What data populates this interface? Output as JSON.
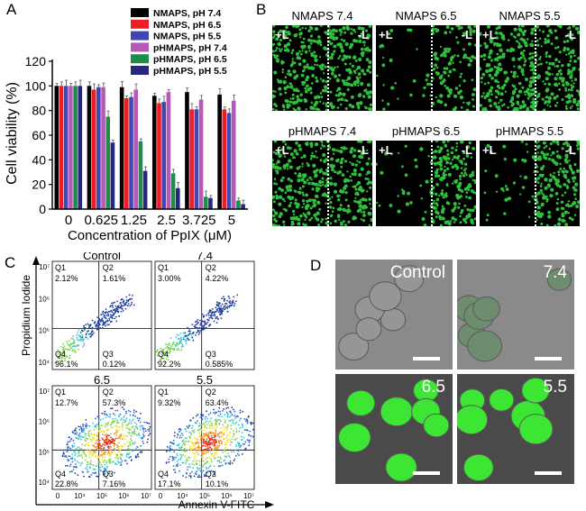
{
  "panel_labels": {
    "a": "A",
    "b": "B",
    "c": "C",
    "d": "D"
  },
  "chart_data": [
    {
      "type": "bar",
      "panel": "A",
      "ylabel": "Cell viability (%)",
      "xlabel": "Concentration of PpIX (μM)",
      "ylim": [
        0,
        120
      ],
      "yticks": [
        "0",
        "20",
        "40",
        "60",
        "80",
        "100",
        "120"
      ],
      "categories": [
        "0",
        "0.625",
        "1.25",
        "2.5",
        "3.725",
        "5"
      ],
      "legend_position": "top-right",
      "series": [
        {
          "name": "NMAPS, pH 7.4",
          "color": "#000000",
          "values": [
            100,
            100,
            99,
            92,
            95,
            93
          ]
        },
        {
          "name": "NMAPS, pH 6.5",
          "color": "#ee1c25",
          "values": [
            100,
            97,
            90,
            86,
            81,
            81
          ]
        },
        {
          "name": "NMAPS, pH 5.5",
          "color": "#3f47b7",
          "values": [
            100,
            99,
            91,
            87,
            81,
            78
          ]
        },
        {
          "name": "pHMAPS, pH 7.4",
          "color": "#b659b6",
          "values": [
            100,
            99,
            97,
            95,
            89,
            88
          ]
        },
        {
          "name": "pHMAPS, pH 6.5",
          "color": "#1e8c4a",
          "values": [
            100,
            75,
            55,
            29,
            10,
            7
          ]
        },
        {
          "name": "pHMAPS, pH 5.5",
          "color": "#25287c",
          "values": [
            100,
            54,
            31,
            17,
            9,
            4
          ]
        }
      ]
    },
    {
      "type": "scatter",
      "panel": "C",
      "xlabel": "Annexin V-FITC",
      "ylabel": "Propidium Iodide",
      "x_ticks": [
        "0",
        "10⁴",
        "10⁵",
        "10⁶",
        "10⁷"
      ],
      "y_ticks": [
        "10⁷",
        "10⁶",
        "10⁵",
        "10⁴"
      ],
      "plots": [
        {
          "title": "Control",
          "q1_label": "Q1",
          "q1": "2.12%",
          "q2_label": "Q2",
          "q2": "1.61%",
          "q3_label": "Q3",
          "q3": "0.12%",
          "q4_label": "Q4",
          "q4": "96.1%"
        },
        {
          "title": "7.4",
          "q1_label": "Q1",
          "q1": "3.00%",
          "q2_label": "Q2",
          "q2": "4.22%",
          "q3_label": "Q3",
          "q3": "0.585%",
          "q4_label": "Q4",
          "q4": "92.2%"
        },
        {
          "title": "6.5",
          "q1_label": "Q1",
          "q1": "12.7%",
          "q2_label": "Q2",
          "q2": "57.3%",
          "q3_label": "Q3",
          "q3": "7.16%",
          "q4_label": "Q4",
          "q4": "22.8%"
        },
        {
          "title": "5.5",
          "q1_label": "Q1",
          "q1": "9.32%",
          "q2_label": "Q2",
          "q2": "63.4%",
          "q3_label": "Q3",
          "q3": "10.1%",
          "q4_label": "Q4",
          "q4": "17.1%"
        }
      ]
    }
  ],
  "panel_b": {
    "cells": [
      {
        "title": "NMAPS 7.4",
        "left_tag": "+L",
        "right_tag": "-L"
      },
      {
        "title": "NMAPS 6.5",
        "left_tag": "+L",
        "right_tag": "-L"
      },
      {
        "title": "NMAPS 5.5",
        "left_tag": "+L",
        "right_tag": "-L"
      },
      {
        "title": "pHMAPS 7.4",
        "left_tag": "+L",
        "right_tag": "-L"
      },
      {
        "title": "pHMAPS 6.5",
        "left_tag": "+L",
        "right_tag": "-L"
      },
      {
        "title": "pHMAPS 5.5",
        "left_tag": "+L",
        "right_tag": "-L"
      }
    ],
    "colors": {
      "background": "#000000",
      "cells": "#2fbf3c"
    }
  },
  "panel_d": {
    "cells": [
      {
        "label": "Control",
        "fluorescence": 0.0
      },
      {
        "label": "7.4",
        "fluorescence": 0.25
      },
      {
        "label": "6.5",
        "fluorescence": 1.0
      },
      {
        "label": "5.5",
        "fluorescence": 1.0
      }
    ]
  }
}
